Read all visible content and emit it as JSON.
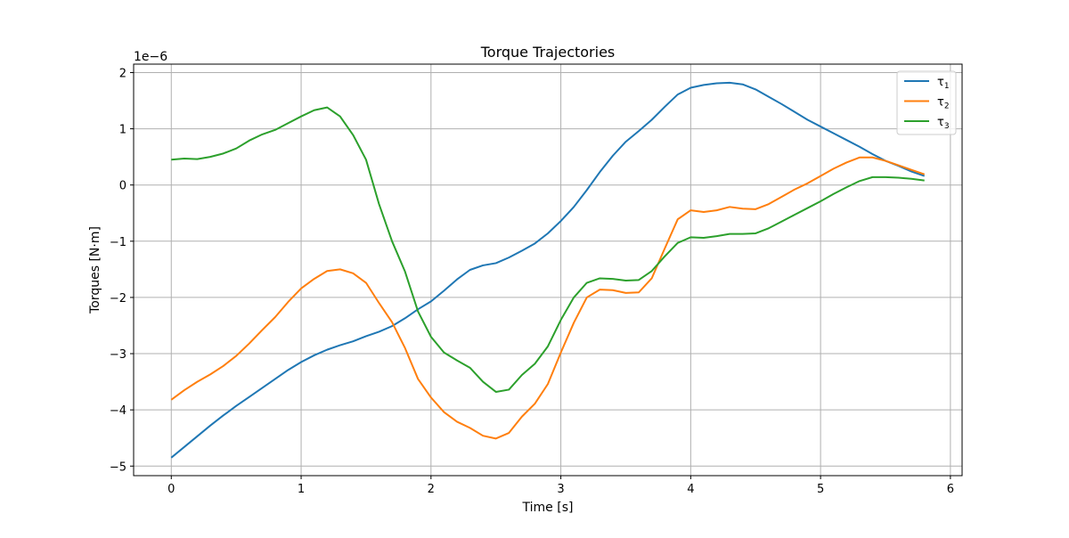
{
  "chart_data": {
    "type": "line",
    "title": "Torque Trajectories",
    "xlabel": "Time [s]",
    "ylabel": "Torques [N·m]",
    "y_offset_label": "1e−6",
    "xlim": [
      -0.29,
      6.09
    ],
    "ylim": [
      -5.17,
      2.15
    ],
    "xticks": [
      0,
      1,
      2,
      3,
      4,
      5,
      6
    ],
    "yticks": [
      -5,
      -4,
      -3,
      -2,
      -1,
      0,
      1,
      2
    ],
    "ytick_labels": [
      "−5",
      "−4",
      "−3",
      "−2",
      "−1",
      "0",
      "1",
      "2"
    ],
    "grid": true,
    "legend_position": "top-right",
    "x": [
      0,
      0.1,
      0.2,
      0.3,
      0.4,
      0.5,
      0.6,
      0.7,
      0.8,
      0.9,
      1.0,
      1.1,
      1.2,
      1.3,
      1.4,
      1.5,
      1.6,
      1.7,
      1.8,
      1.9,
      2.0,
      2.1,
      2.2,
      2.3,
      2.4,
      2.5,
      2.6,
      2.7,
      2.8,
      2.9,
      3.0,
      3.1,
      3.2,
      3.3,
      3.4,
      3.5,
      3.6,
      3.7,
      3.8,
      3.9,
      4.0,
      4.1,
      4.2,
      4.3,
      4.4,
      4.5,
      4.6,
      4.7,
      4.8,
      4.9,
      5.0,
      5.1,
      5.2,
      5.3,
      5.4,
      5.5,
      5.6,
      5.7,
      5.8
    ],
    "series": [
      {
        "name": "τ",
        "subscript": "1",
        "color": "#1f77b4",
        "values": [
          -4.85,
          -4.66,
          -4.47,
          -4.28,
          -4.1,
          -3.93,
          -3.77,
          -3.61,
          -3.45,
          -3.29,
          -3.15,
          -3.03,
          -2.93,
          -2.85,
          -2.78,
          -2.69,
          -2.61,
          -2.51,
          -2.37,
          -2.21,
          -2.07,
          -1.88,
          -1.68,
          -1.51,
          -1.43,
          -1.39,
          -1.29,
          -1.17,
          -1.04,
          -0.86,
          -0.64,
          -0.39,
          -0.09,
          0.23,
          0.52,
          0.77,
          0.96,
          1.16,
          1.39,
          1.61,
          1.73,
          1.78,
          1.81,
          1.82,
          1.79,
          1.7,
          1.57,
          1.44,
          1.3,
          1.16,
          1.04,
          0.92,
          0.8,
          0.68,
          0.55,
          0.43,
          0.34,
          0.24,
          0.16
        ]
      },
      {
        "name": "τ",
        "subscript": "2",
        "color": "#ff7f0e",
        "values": [
          -3.82,
          -3.65,
          -3.5,
          -3.37,
          -3.22,
          -3.04,
          -2.82,
          -2.58,
          -2.35,
          -2.08,
          -1.84,
          -1.67,
          -1.53,
          -1.5,
          -1.57,
          -1.74,
          -2.1,
          -2.44,
          -2.9,
          -3.45,
          -3.78,
          -4.04,
          -4.21,
          -4.32,
          -4.46,
          -4.51,
          -4.41,
          -4.12,
          -3.89,
          -3.54,
          -2.98,
          -2.45,
          -2.0,
          -1.86,
          -1.87,
          -1.92,
          -1.91,
          -1.66,
          -1.13,
          -0.61,
          -0.45,
          -0.48,
          -0.45,
          -0.39,
          -0.42,
          -0.43,
          -0.34,
          -0.21,
          -0.08,
          0.03,
          0.16,
          0.29,
          0.4,
          0.49,
          0.49,
          0.43,
          0.35,
          0.27,
          0.19
        ]
      },
      {
        "name": "τ",
        "subscript": "3",
        "color": "#2ca02c",
        "values": [
          0.45,
          0.47,
          0.46,
          0.5,
          0.56,
          0.65,
          0.79,
          0.9,
          0.98,
          1.1,
          1.22,
          1.33,
          1.38,
          1.22,
          0.89,
          0.45,
          -0.34,
          -1.0,
          -1.54,
          -2.25,
          -2.7,
          -2.98,
          -3.12,
          -3.25,
          -3.5,
          -3.68,
          -3.64,
          -3.38,
          -3.18,
          -2.87,
          -2.4,
          -2.0,
          -1.74,
          -1.66,
          -1.67,
          -1.7,
          -1.69,
          -1.53,
          -1.27,
          -1.03,
          -0.93,
          -0.94,
          -0.91,
          -0.87,
          -0.87,
          -0.86,
          -0.77,
          -0.65,
          -0.53,
          -0.41,
          -0.29,
          -0.16,
          -0.04,
          0.07,
          0.14,
          0.14,
          0.13,
          0.11,
          0.08
        ]
      }
    ]
  }
}
